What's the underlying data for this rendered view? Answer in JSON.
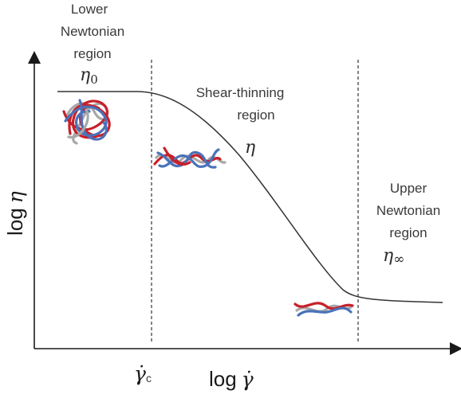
{
  "regions": {
    "lower": {
      "lines": [
        "Lower",
        "Newtonian",
        "region"
      ],
      "symbol": "η",
      "subscript": "0"
    },
    "shear": {
      "lines": [
        "Shear-thinning",
        "region"
      ],
      "symbol": "η"
    },
    "upper": {
      "lines": [
        "Upper",
        "Newtonian",
        "region"
      ],
      "symbol": "η",
      "subscript": "∞"
    }
  },
  "axes": {
    "y_label": "log",
    "y_symbol": "η",
    "x_label": "log",
    "x_symbol": "γ̇",
    "critical_rate_symbol": "γ̇",
    "critical_rate_subscript": "c"
  },
  "colors": {
    "axis": "#1a1a1a",
    "curve": "#333333",
    "chain_red": "#c8202a",
    "chain_blue": "#4a72b8",
    "chain_grey": "#a8a8a8"
  },
  "icons": [
    "polymer-coil-icon",
    "polymer-partially-aligned-icon",
    "polymer-aligned-icon"
  ]
}
